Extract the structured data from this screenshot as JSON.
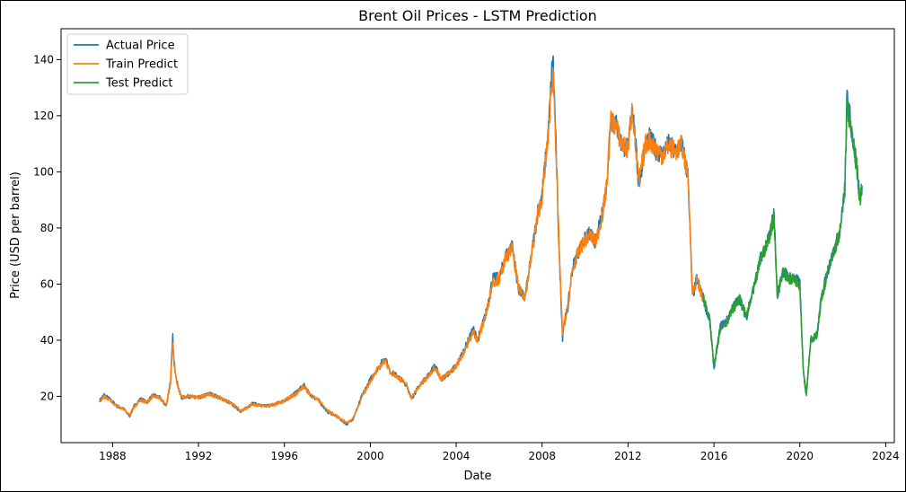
{
  "chart_data": {
    "type": "line",
    "title": "Brent Oil Prices - LSTM Prediction",
    "xlabel": "Date",
    "ylabel": "Price (USD per barrel)",
    "xlim": [
      1985.6,
      2024.4
    ],
    "ylim": [
      3.5,
      151
    ],
    "x_ticks": [
      1988,
      1992,
      1996,
      2000,
      2004,
      2008,
      2012,
      2016,
      2020,
      2024
    ],
    "y_ticks": [
      20,
      40,
      60,
      80,
      100,
      120,
      140
    ],
    "grid": false,
    "legend_position": "upper-left",
    "series": [
      {
        "name": "Actual Price",
        "color": "#1f77b4",
        "x": [
          1987.4,
          1987.6,
          1987.9,
          1988.2,
          1988.5,
          1988.8,
          1989.0,
          1989.3,
          1989.6,
          1989.9,
          1990.2,
          1990.5,
          1990.7,
          1990.8,
          1990.85,
          1991.0,
          1991.2,
          1991.5,
          1992.0,
          1992.5,
          1993.0,
          1993.5,
          1994.0,
          1994.5,
          1995.0,
          1995.5,
          1996.0,
          1996.5,
          1996.9,
          1997.2,
          1997.6,
          1998.0,
          1998.4,
          1998.9,
          1999.2,
          1999.6,
          2000.0,
          2000.3,
          2000.7,
          2000.9,
          2001.3,
          2001.7,
          2001.9,
          2002.3,
          2002.7,
          2003.0,
          2003.3,
          2003.7,
          2004.0,
          2004.4,
          2004.8,
          2005.0,
          2005.4,
          2005.7,
          2006.0,
          2006.3,
          2006.6,
          2006.9,
          2007.2,
          2007.5,
          2007.8,
          2008.0,
          2008.3,
          2008.5,
          2008.6,
          2008.8,
          2008.95,
          2009.0,
          2009.2,
          2009.4,
          2009.6,
          2009.9,
          2010.2,
          2010.5,
          2010.8,
          2011.0,
          2011.2,
          2011.4,
          2011.7,
          2012.0,
          2012.2,
          2012.5,
          2012.8,
          2013.0,
          2013.3,
          2013.6,
          2013.9,
          2014.2,
          2014.5,
          2014.8,
          2015.0,
          2015.2,
          2015.5,
          2015.8,
          2016.0,
          2016.3,
          2016.6,
          2016.9,
          2017.2,
          2017.5,
          2017.9,
          2018.2,
          2018.5,
          2018.8,
          2018.95,
          2019.2,
          2019.5,
          2019.8,
          2020.0,
          2020.15,
          2020.3,
          2020.5,
          2020.8,
          2021.0,
          2021.3,
          2021.6,
          2021.9,
          2022.1,
          2022.2,
          2022.4,
          2022.6,
          2022.8,
          2022.9
        ],
        "y": [
          18.5,
          20.5,
          18.8,
          16.5,
          15.5,
          13.0,
          16.5,
          19.0,
          18.0,
          20.5,
          19.5,
          16.5,
          26.0,
          41.0,
          33.0,
          25.0,
          19.5,
          20.0,
          19.5,
          21.0,
          19.5,
          17.5,
          14.5,
          17.5,
          16.5,
          17.0,
          18.5,
          21.0,
          24.0,
          20.5,
          18.5,
          14.5,
          13.0,
          10.0,
          12.0,
          20.0,
          26.0,
          29.5,
          34.0,
          29.0,
          27.0,
          24.0,
          19.0,
          24.0,
          27.5,
          31.0,
          26.0,
          28.5,
          31.0,
          37.0,
          44.0,
          40.0,
          50.0,
          62.0,
          62.0,
          70.0,
          74.0,
          58.0,
          55.0,
          70.0,
          86.0,
          92.0,
          115.0,
          142.0,
          120.0,
          70.0,
          41.0,
          45.0,
          52.0,
          65.0,
          70.0,
          75.0,
          78.0,
          75.0,
          85.0,
          95.0,
          120.0,
          118.0,
          110.0,
          108.0,
          125.0,
          95.0,
          110.0,
          112.0,
          108.0,
          106.0,
          110.0,
          107.0,
          110.0,
          98.0,
          55.0,
          62.0,
          55.0,
          47.0,
          30.0,
          45.0,
          47.0,
          52.0,
          55.0,
          48.0,
          60.0,
          70.0,
          75.0,
          85.0,
          55.0,
          65.0,
          62.0,
          62.0,
          60.0,
          30.0,
          20.0,
          40.0,
          42.0,
          55.0,
          65.0,
          72.0,
          80.0,
          95.0,
          128.0,
          115.0,
          105.0,
          90.0,
          95.0
        ]
      },
      {
        "name": "Train Predict",
        "color": "#ff7f0e",
        "x": [
          1987.4,
          1987.6,
          1987.9,
          1988.2,
          1988.5,
          1988.8,
          1989.0,
          1989.3,
          1989.6,
          1989.9,
          1990.2,
          1990.5,
          1990.7,
          1990.8,
          1990.85,
          1991.0,
          1991.2,
          1991.5,
          1992.0,
          1992.5,
          1993.0,
          1993.5,
          1994.0,
          1994.5,
          1995.0,
          1995.5,
          1996.0,
          1996.5,
          1996.9,
          1997.2,
          1997.6,
          1998.0,
          1998.4,
          1998.9,
          1999.2,
          1999.6,
          2000.0,
          2000.3,
          2000.7,
          2000.9,
          2001.3,
          2001.7,
          2001.9,
          2002.3,
          2002.7,
          2003.0,
          2003.3,
          2003.7,
          2004.0,
          2004.4,
          2004.8,
          2005.0,
          2005.4,
          2005.7,
          2006.0,
          2006.3,
          2006.6,
          2006.9,
          2007.2,
          2007.5,
          2007.8,
          2008.0,
          2008.3,
          2008.5,
          2008.6,
          2008.8,
          2008.95,
          2009.0,
          2009.2,
          2009.4,
          2009.6,
          2009.9,
          2010.2,
          2010.5,
          2010.8,
          2011.0,
          2011.2,
          2011.4,
          2011.7,
          2012.0,
          2012.2,
          2012.5,
          2012.8,
          2013.0,
          2013.3,
          2013.6,
          2013.9,
          2014.2,
          2014.5,
          2014.8,
          2015.0,
          2015.2,
          2015.5
        ],
        "y": [
          18.3,
          20.0,
          18.6,
          16.6,
          15.6,
          13.4,
          16.2,
          18.7,
          17.9,
          20.1,
          19.4,
          16.8,
          25.0,
          38.5,
          32.0,
          24.5,
          19.6,
          19.9,
          19.5,
          20.8,
          19.5,
          17.6,
          14.8,
          17.3,
          16.5,
          17.0,
          18.4,
          20.7,
          23.5,
          20.6,
          18.6,
          14.9,
          13.2,
          10.5,
          12.2,
          19.5,
          25.5,
          29.0,
          33.0,
          28.8,
          26.8,
          24.0,
          19.4,
          23.8,
          27.2,
          30.5,
          26.2,
          28.3,
          30.8,
          36.5,
          43.0,
          40.0,
          49.5,
          61.0,
          61.8,
          69.0,
          73.0,
          58.5,
          55.5,
          69.5,
          85.0,
          91.0,
          114.0,
          136.0,
          119.0,
          71.0,
          42.0,
          45.0,
          51.5,
          64.5,
          69.5,
          74.5,
          77.5,
          75.0,
          84.5,
          94.5,
          118.0,
          117.0,
          110.0,
          108.0,
          123.0,
          96.0,
          109.5,
          111.5,
          108.0,
          106.0,
          109.5,
          107.0,
          109.5,
          98.0,
          57.0,
          61.5,
          55.0
        ]
      },
      {
        "name": "Test Predict",
        "color": "#2ca02c",
        "x": [
          2015.5,
          2015.8,
          2016.0,
          2016.3,
          2016.6,
          2016.9,
          2017.2,
          2017.5,
          2017.9,
          2018.2,
          2018.5,
          2018.8,
          2018.95,
          2019.2,
          2019.5,
          2019.8,
          2020.0,
          2020.15,
          2020.3,
          2020.5,
          2020.8,
          2021.0,
          2021.3,
          2021.6,
          2021.9,
          2022.1,
          2022.2,
          2022.4,
          2022.6,
          2022.8,
          2022.9
        ],
        "y": [
          55.0,
          47.5,
          31.0,
          44.5,
          46.5,
          51.5,
          54.5,
          48.5,
          59.5,
          69.5,
          74.5,
          84.0,
          56.0,
          64.5,
          62.0,
          61.5,
          59.5,
          31.0,
          21.0,
          39.5,
          42.0,
          54.5,
          64.5,
          71.5,
          79.5,
          94.5,
          124.0,
          114.0,
          104.0,
          90.5,
          94.5
        ]
      }
    ]
  }
}
